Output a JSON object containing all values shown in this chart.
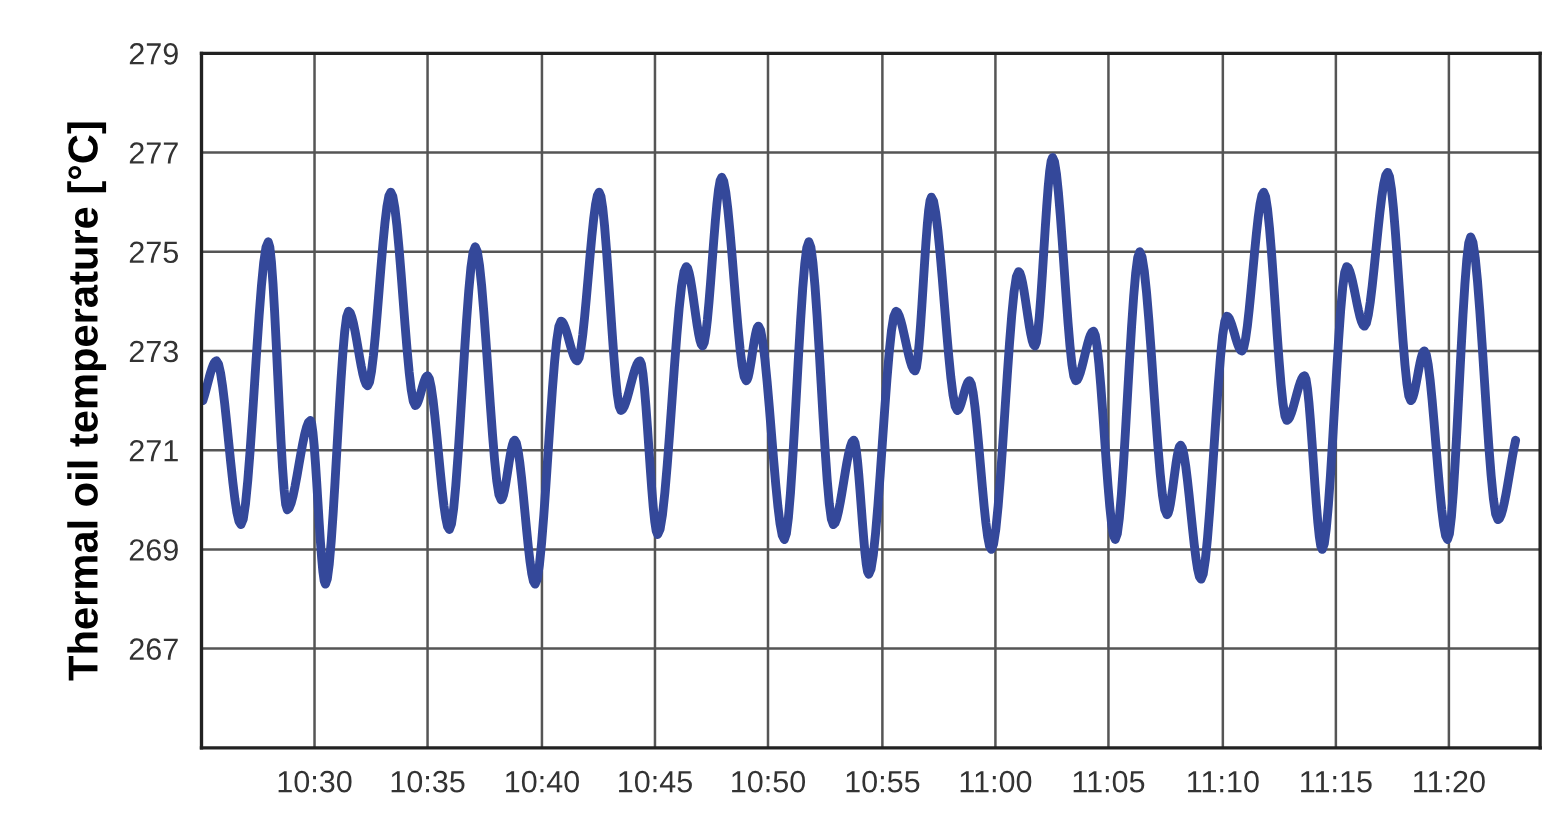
{
  "chart_data": {
    "type": "line",
    "ylabel": "Thermal oil temperature [°C]",
    "x": [
      10.418,
      10.428,
      10.446,
      10.466,
      10.48,
      10.497,
      10.508,
      10.525,
      10.539,
      10.556,
      10.574,
      10.583,
      10.599,
      10.618,
      10.637,
      10.647,
      10.662,
      10.681,
      10.693,
      10.709,
      10.725,
      10.739,
      10.752,
      10.773,
      10.785,
      10.799,
      10.817,
      10.826,
      10.845,
      10.863,
      10.881,
      10.896,
      10.907,
      10.927,
      10.941,
      10.953,
      10.972,
      10.981,
      10.997,
      11.017,
      11.029,
      11.042,
      11.059,
      11.072,
      11.088,
      11.106,
      11.126,
      11.136,
      11.151,
      11.17,
      11.181,
      11.197,
      11.214,
      11.227,
      11.24,
      11.258,
      11.271,
      11.288,
      11.305,
      11.315,
      11.332,
      11.349,
      11.369,
      11.382
    ],
    "series": [
      {
        "color": "#34489a",
        "values": [
          272.0,
          272.8,
          269.5,
          275.2,
          269.8,
          271.6,
          268.3,
          273.8,
          272.3,
          276.2,
          271.9,
          272.5,
          269.4,
          275.1,
          270.0,
          271.2,
          268.3,
          273.6,
          272.8,
          276.2,
          271.8,
          272.8,
          269.3,
          274.7,
          273.1,
          276.5,
          272.4,
          273.5,
          269.2,
          275.2,
          269.5,
          271.2,
          268.5,
          273.8,
          272.6,
          276.1,
          271.8,
          272.4,
          269.0,
          274.6,
          273.1,
          276.9,
          272.4,
          273.4,
          269.2,
          275.0,
          269.7,
          271.1,
          268.4,
          273.7,
          273.0,
          276.2,
          271.6,
          272.5,
          269.0,
          274.7,
          273.5,
          276.6,
          272.0,
          273.0,
          269.2,
          275.3,
          269.6,
          271.2
        ]
      }
    ],
    "xlim": [
      10.417,
      11.4
    ],
    "xticks": [
      {
        "value": 10.5,
        "label": "10:30"
      },
      {
        "value": 10.583,
        "label": "10:35"
      },
      {
        "value": 10.667,
        "label": "10:40"
      },
      {
        "value": 10.75,
        "label": "10:45"
      },
      {
        "value": 10.833,
        "label": "10:50"
      },
      {
        "value": 10.917,
        "label": "10:55"
      },
      {
        "value": 11.0,
        "label": "11:00"
      },
      {
        "value": 11.083,
        "label": "11:05"
      },
      {
        "value": 11.167,
        "label": "11:10"
      },
      {
        "value": 11.25,
        "label": "11:15"
      },
      {
        "value": 11.333,
        "label": "11:20"
      }
    ],
    "ylim": [
      265,
      279
    ],
    "yticks": [
      267,
      269,
      271,
      273,
      275,
      277,
      279
    ],
    "grid": true,
    "marker": "none",
    "line_style": "solid",
    "legend": false
  }
}
